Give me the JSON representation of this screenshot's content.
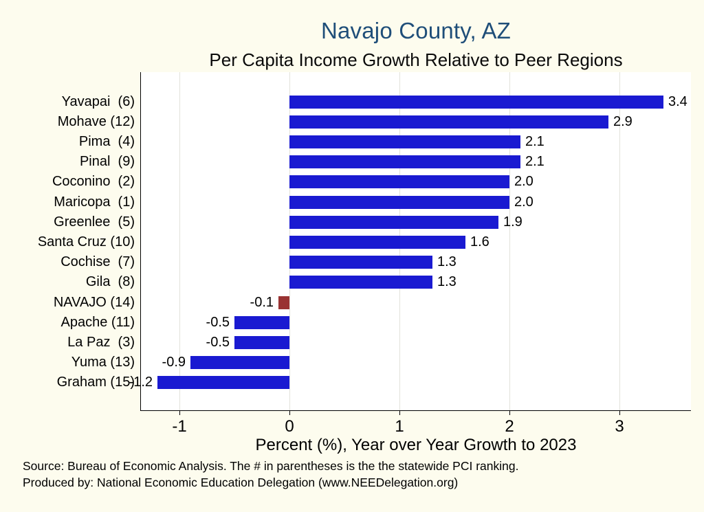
{
  "chart_data": {
    "type": "bar",
    "orientation": "horizontal",
    "title": "Navajo County, AZ",
    "subtitle": "Per Capita Income Growth Relative to Peer Regions",
    "xlabel": "Percent (%), Year over Year Growth to 2023",
    "categories": [
      "Yavapai  (6)",
      "Mohave (12)",
      "Pima  (4)",
      "Pinal  (9)",
      "Coconino  (2)",
      "Maricopa  (1)",
      "Greenlee  (5)",
      "Santa Cruz (10)",
      "Cochise  (7)",
      "Gila  (8)",
      "NAVAJO (14)",
      "Apache (11)",
      "La Paz  (3)",
      "Yuma (13)",
      "Graham (15)"
    ],
    "values": [
      3.4,
      2.9,
      2.1,
      2.1,
      2.0,
      2.0,
      1.9,
      1.6,
      1.3,
      1.3,
      -0.1,
      -0.5,
      -0.5,
      -0.9,
      -1.2
    ],
    "highlight_index": 10,
    "highlight_category": "NAVAJO (14)",
    "bar_color": "#1a1ad1",
    "highlight_color": "#993333",
    "xticks": [
      -1,
      0,
      1,
      2,
      3
    ],
    "xlim": [
      -1.35,
      3.65
    ],
    "grid": true,
    "legend": "none",
    "notes": [
      "Source: Bureau of Economic Analysis. The # in parentheses is the the statewide PCI ranking.",
      "Produced by: National Economic Education Delegation (www.NEEDelegation.org)"
    ],
    "colors": {
      "background": "#fdfcee",
      "plot_background": "#ffffff",
      "title": "#1f4e79",
      "gridline": "#e2e2da",
      "text": "#000000"
    }
  }
}
